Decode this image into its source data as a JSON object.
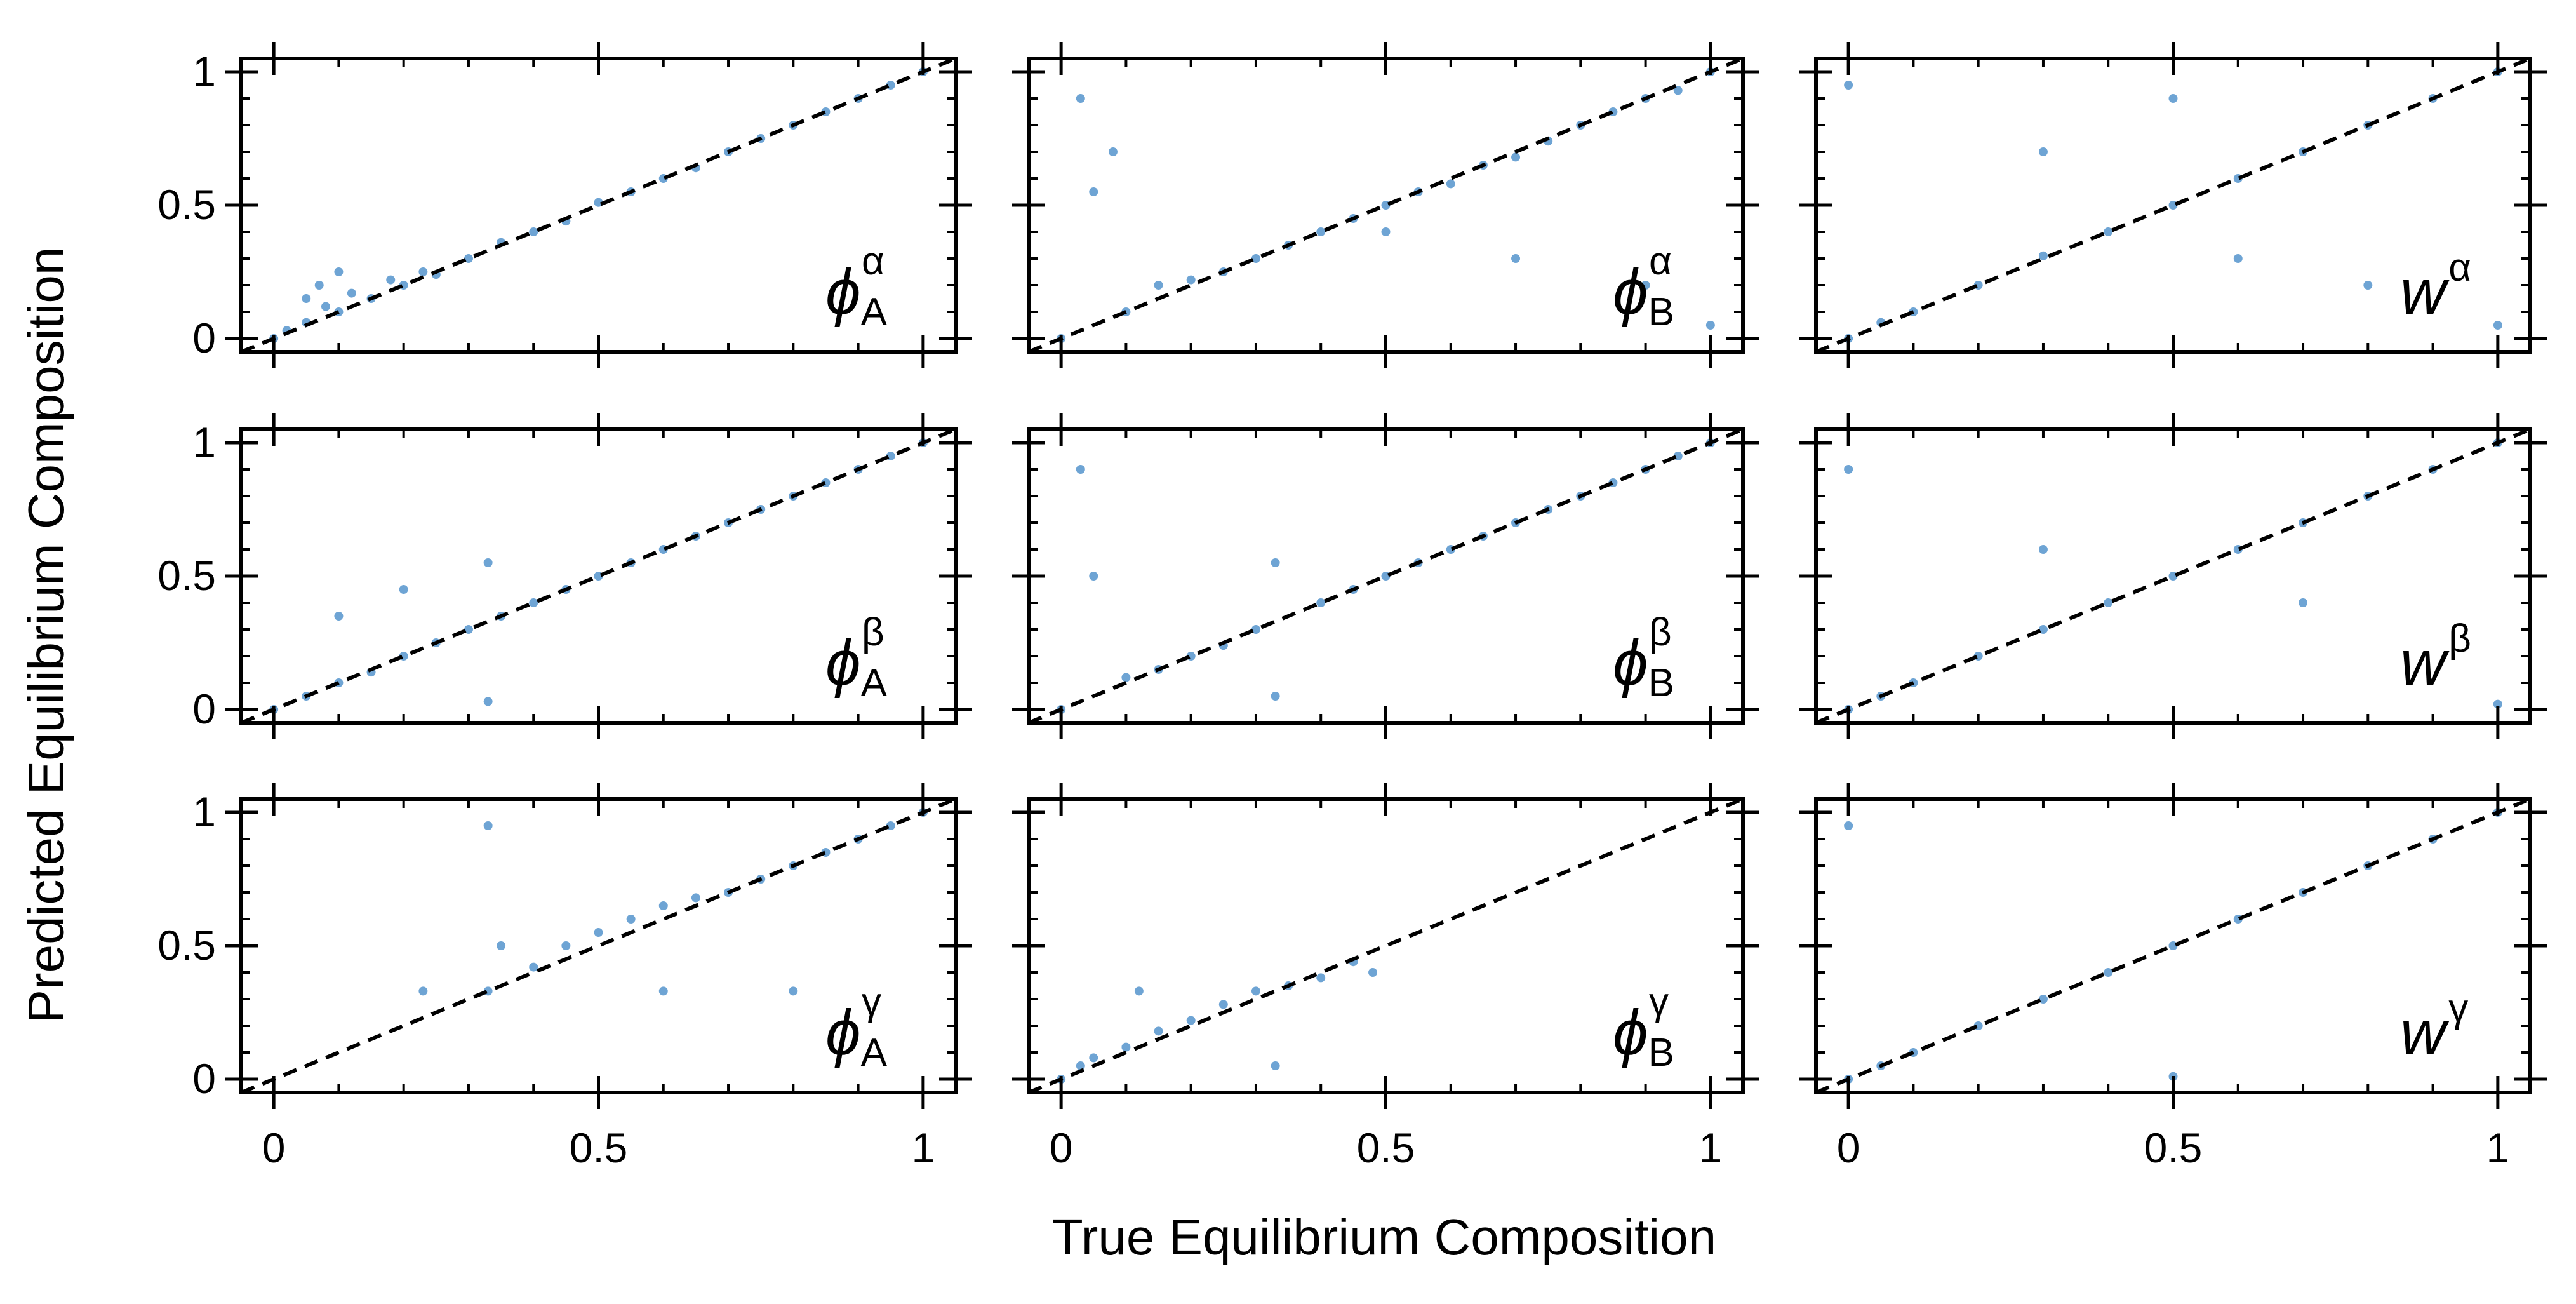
{
  "chart_data": {
    "type": "scatter",
    "layout": "3x3 grid of panels",
    "xlabel": "True Equilibrium Composition",
    "ylabel": "Predicted Equilibrium Composition",
    "xlim": [
      -0.05,
      1.05
    ],
    "ylim": [
      -0.05,
      1.05
    ],
    "x_ticks": [
      0,
      0.5,
      1
    ],
    "x_tick_labels": [
      "0",
      "0.5",
      "1"
    ],
    "y_ticks": [
      0,
      0.5,
      1
    ],
    "y_tick_labels": [
      "0",
      "0.5",
      "1"
    ],
    "reference_line": {
      "style": "dashed",
      "color": "#000000",
      "x": [
        -0.05,
        1.05
      ],
      "y": [
        -0.05,
        1.05
      ]
    },
    "point_color": "#3d85c6",
    "panels": [
      {
        "label": {
          "base": "ϕ",
          "sub": "A",
          "sup": "α"
        },
        "points": [
          [
            0,
            0
          ],
          [
            0.02,
            0.03
          ],
          [
            0.05,
            0.06
          ],
          [
            0.08,
            0.12
          ],
          [
            0.1,
            0.1
          ],
          [
            0.12,
            0.17
          ],
          [
            0.15,
            0.15
          ],
          [
            0.18,
            0.22
          ],
          [
            0.2,
            0.2
          ],
          [
            0.23,
            0.25
          ],
          [
            0.25,
            0.24
          ],
          [
            0.3,
            0.3
          ],
          [
            0.35,
            0.36
          ],
          [
            0.4,
            0.4
          ],
          [
            0.45,
            0.44
          ],
          [
            0.5,
            0.51
          ],
          [
            0.55,
            0.55
          ],
          [
            0.6,
            0.6
          ],
          [
            0.65,
            0.64
          ],
          [
            0.7,
            0.7
          ],
          [
            0.75,
            0.75
          ],
          [
            0.8,
            0.8
          ],
          [
            0.85,
            0.85
          ],
          [
            0.9,
            0.9
          ],
          [
            0.95,
            0.95
          ],
          [
            1,
            1
          ],
          [
            0.05,
            0.15
          ],
          [
            0.07,
            0.2
          ],
          [
            0.1,
            0.25
          ]
        ]
      },
      {
        "label": {
          "base": "ϕ",
          "sub": "B",
          "sup": "α"
        },
        "points": [
          [
            0,
            0
          ],
          [
            0.03,
            0.9
          ],
          [
            0.05,
            0.55
          ],
          [
            0.08,
            0.7
          ],
          [
            0.1,
            0.1
          ],
          [
            0.15,
            0.2
          ],
          [
            0.2,
            0.22
          ],
          [
            0.25,
            0.25
          ],
          [
            0.3,
            0.3
          ],
          [
            0.35,
            0.35
          ],
          [
            0.4,
            0.4
          ],
          [
            0.45,
            0.45
          ],
          [
            0.5,
            0.5
          ],
          [
            0.55,
            0.55
          ],
          [
            0.6,
            0.58
          ],
          [
            0.65,
            0.65
          ],
          [
            0.7,
            0.68
          ],
          [
            0.75,
            0.74
          ],
          [
            0.8,
            0.8
          ],
          [
            0.85,
            0.85
          ],
          [
            0.9,
            0.9
          ],
          [
            0.95,
            0.93
          ],
          [
            1,
            1
          ],
          [
            0.5,
            0.4
          ],
          [
            0.7,
            0.3
          ],
          [
            0.9,
            0.2
          ],
          [
            1,
            0.05
          ]
        ]
      },
      {
        "label": {
          "base": "w",
          "sub": "",
          "sup": "α"
        },
        "points": [
          [
            0,
            0
          ],
          [
            0.05,
            0.06
          ],
          [
            0.1,
            0.1
          ],
          [
            0.2,
            0.2
          ],
          [
            0.3,
            0.31
          ],
          [
            0.4,
            0.4
          ],
          [
            0.5,
            0.5
          ],
          [
            0.6,
            0.6
          ],
          [
            0.7,
            0.7
          ],
          [
            0.8,
            0.8
          ],
          [
            0.9,
            0.9
          ],
          [
            1,
            1
          ],
          [
            0,
            0.95
          ],
          [
            1,
            0.05
          ],
          [
            0.3,
            0.7
          ],
          [
            0.6,
            0.3
          ],
          [
            0.5,
            0.9
          ],
          [
            0.8,
            0.2
          ]
        ]
      },
      {
        "label": {
          "base": "ϕ",
          "sub": "A",
          "sup": "β"
        },
        "points": [
          [
            0,
            0
          ],
          [
            0.05,
            0.05
          ],
          [
            0.1,
            0.1
          ],
          [
            0.15,
            0.14
          ],
          [
            0.2,
            0.2
          ],
          [
            0.25,
            0.25
          ],
          [
            0.3,
            0.3
          ],
          [
            0.33,
            0.55
          ],
          [
            0.33,
            0.03
          ],
          [
            0.35,
            0.35
          ],
          [
            0.4,
            0.4
          ],
          [
            0.45,
            0.45
          ],
          [
            0.5,
            0.5
          ],
          [
            0.55,
            0.55
          ],
          [
            0.6,
            0.6
          ],
          [
            0.65,
            0.65
          ],
          [
            0.7,
            0.7
          ],
          [
            0.75,
            0.75
          ],
          [
            0.8,
            0.8
          ],
          [
            0.85,
            0.85
          ],
          [
            0.9,
            0.9
          ],
          [
            0.95,
            0.95
          ],
          [
            1,
            1
          ],
          [
            0.1,
            0.35
          ],
          [
            0.2,
            0.45
          ]
        ]
      },
      {
        "label": {
          "base": "ϕ",
          "sub": "B",
          "sup": "β"
        },
        "points": [
          [
            0,
            0
          ],
          [
            0.03,
            0.9
          ],
          [
            0.05,
            0.5
          ],
          [
            0.1,
            0.12
          ],
          [
            0.15,
            0.15
          ],
          [
            0.2,
            0.2
          ],
          [
            0.25,
            0.24
          ],
          [
            0.3,
            0.3
          ],
          [
            0.33,
            0.55
          ],
          [
            0.33,
            0.05
          ],
          [
            0.4,
            0.4
          ],
          [
            0.45,
            0.45
          ],
          [
            0.5,
            0.5
          ],
          [
            0.55,
            0.55
          ],
          [
            0.6,
            0.6
          ],
          [
            0.65,
            0.65
          ],
          [
            0.7,
            0.7
          ],
          [
            0.75,
            0.75
          ],
          [
            0.8,
            0.8
          ],
          [
            0.85,
            0.85
          ],
          [
            0.9,
            0.9
          ],
          [
            0.95,
            0.95
          ],
          [
            1,
            1
          ]
        ]
      },
      {
        "label": {
          "base": "w",
          "sub": "",
          "sup": "β"
        },
        "points": [
          [
            0,
            0
          ],
          [
            0.05,
            0.05
          ],
          [
            0.1,
            0.1
          ],
          [
            0.2,
            0.2
          ],
          [
            0.3,
            0.3
          ],
          [
            0.4,
            0.4
          ],
          [
            0.5,
            0.5
          ],
          [
            0.6,
            0.6
          ],
          [
            0.7,
            0.7
          ],
          [
            0.8,
            0.8
          ],
          [
            0.9,
            0.9
          ],
          [
            1,
            1
          ],
          [
            0,
            0.9
          ],
          [
            1,
            0.02
          ],
          [
            0.3,
            0.6
          ],
          [
            0.7,
            0.4
          ]
        ]
      },
      {
        "label": {
          "base": "ϕ",
          "sub": "A",
          "sup": "γ"
        },
        "points": [
          [
            0.23,
            0.33
          ],
          [
            0.33,
            0.95
          ],
          [
            0.33,
            0.33
          ],
          [
            0.35,
            0.5
          ],
          [
            0.4,
            0.42
          ],
          [
            0.45,
            0.5
          ],
          [
            0.5,
            0.55
          ],
          [
            0.55,
            0.6
          ],
          [
            0.6,
            0.65
          ],
          [
            0.65,
            0.68
          ],
          [
            0.7,
            0.7
          ],
          [
            0.75,
            0.75
          ],
          [
            0.8,
            0.8
          ],
          [
            0.85,
            0.85
          ],
          [
            0.9,
            0.9
          ],
          [
            0.95,
            0.95
          ],
          [
            1,
            1
          ],
          [
            0.6,
            0.33
          ],
          [
            0.8,
            0.33
          ]
        ]
      },
      {
        "label": {
          "base": "ϕ",
          "sub": "B",
          "sup": "γ"
        },
        "points": [
          [
            0,
            0
          ],
          [
            0.03,
            0.05
          ],
          [
            0.05,
            0.08
          ],
          [
            0.1,
            0.12
          ],
          [
            0.12,
            0.33
          ],
          [
            0.15,
            0.18
          ],
          [
            0.2,
            0.22
          ],
          [
            0.25,
            0.28
          ],
          [
            0.3,
            0.33
          ],
          [
            0.33,
            0.05
          ],
          [
            0.35,
            0.35
          ],
          [
            0.4,
            0.38
          ],
          [
            0.45,
            0.44
          ],
          [
            0.48,
            0.4
          ]
        ]
      },
      {
        "label": {
          "base": "w",
          "sub": "",
          "sup": "γ"
        },
        "points": [
          [
            0,
            0
          ],
          [
            0,
            0.95
          ],
          [
            0.05,
            0.05
          ],
          [
            0.1,
            0.1
          ],
          [
            0.2,
            0.2
          ],
          [
            0.3,
            0.3
          ],
          [
            0.4,
            0.4
          ],
          [
            0.5,
            0.5
          ],
          [
            0.6,
            0.6
          ],
          [
            0.7,
            0.7
          ],
          [
            0.8,
            0.8
          ],
          [
            0.9,
            0.9
          ],
          [
            1,
            1
          ],
          [
            0.5,
            0.01
          ]
        ]
      }
    ]
  }
}
